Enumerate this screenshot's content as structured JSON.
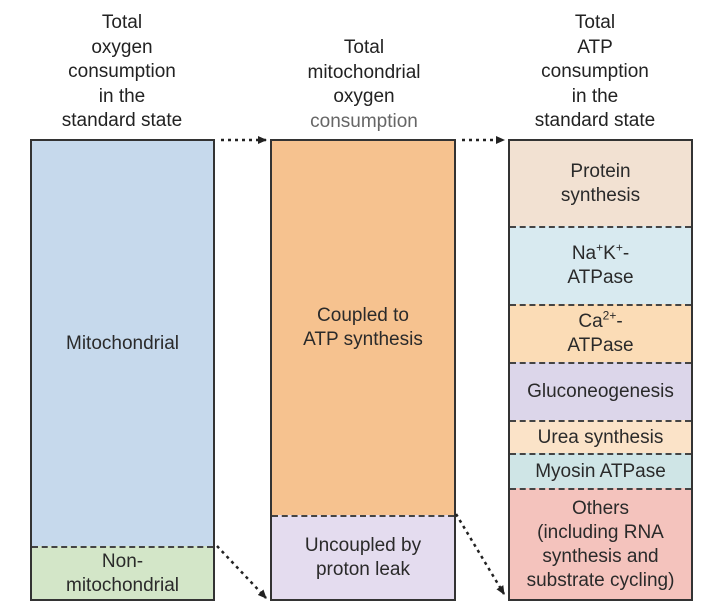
{
  "headers": {
    "left": [
      "Total",
      "oxygen",
      "consumption",
      "in the",
      "standard state"
    ],
    "middle": [
      "Total",
      "mitochondrial",
      "oxygen",
      "consumption"
    ],
    "right": [
      "Total",
      "ATP",
      "consumption",
      "in the",
      "standard state"
    ]
  },
  "left_column": {
    "mitochondrial": "Mitochondrial",
    "non_mitochondrial_line1": "Non-",
    "non_mitochondrial_line2": "mitochondrial"
  },
  "middle_column": {
    "coupled_line1": "Coupled to",
    "coupled_line2": "ATP synthesis",
    "uncoupled_line1": "Uncoupled by",
    "uncoupled_line2": "proton leak"
  },
  "right_column": {
    "protein_line1": "Protein",
    "protein_line2": "synthesis",
    "nak_base1": "Na",
    "nak_sup1": "+",
    "nak_base2": "K",
    "nak_sup2": "+",
    "nak_suffix": "-",
    "nak_line2": "ATPase",
    "ca_base": "Ca",
    "ca_sup": "2+",
    "ca_suffix": "-",
    "ca_line2": "ATPase",
    "gluconeogenesis": "Gluconeogenesis",
    "urea": "Urea synthesis",
    "myosin": "Myosin ATPase",
    "others_line1": "Others",
    "others_line2": "(including RNA",
    "others_line3": "synthesis and",
    "others_line4": "substrate cycling)"
  },
  "colors": {
    "mitochondrial": "#c6d9ec",
    "non_mitochondrial": "#d3e6c8",
    "coupled": "#f6c28f",
    "uncoupled": "#e4dcef",
    "protein": "#f2e1d2",
    "nak": "#d8eaf0",
    "ca": "#fbdcb6",
    "gluconeogenesis": "#dcd6ea",
    "urea": "#fbe3c8",
    "myosin": "#cfe5e6",
    "others": "#f4c3bd"
  }
}
